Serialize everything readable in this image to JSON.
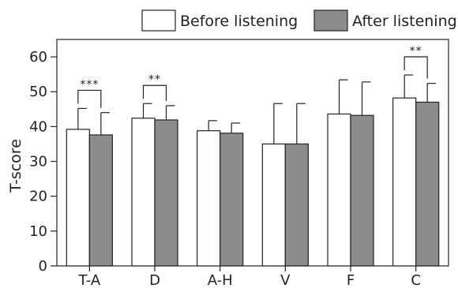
{
  "chart_data": {
    "type": "bar",
    "title": "",
    "xlabel": "",
    "ylabel": "T-score",
    "ylim": [
      0,
      65
    ],
    "yticks": [
      0,
      10,
      20,
      30,
      40,
      50,
      60
    ],
    "grid": false,
    "legend_position": "top-right",
    "categories": [
      "T-A",
      "D",
      "A-H",
      "V",
      "F",
      "C"
    ],
    "series": [
      {
        "name": "Before listening",
        "color": "#ffffff",
        "values": [
          39.2,
          42.4,
          38.8,
          35.0,
          43.6,
          48.2
        ],
        "error_upper": [
          45.2,
          46.6,
          41.7,
          46.6,
          53.4,
          54.8
        ]
      },
      {
        "name": "After listening",
        "color": "#8c8c8c",
        "values": [
          37.6,
          41.9,
          38.1,
          35.0,
          43.2,
          47.0
        ],
        "error_upper": [
          44.0,
          46.0,
          41.0,
          46.6,
          52.8,
          52.4
        ]
      }
    ],
    "significance": [
      {
        "category": "T-A",
        "label": "***"
      },
      {
        "category": "D",
        "label": "**"
      },
      {
        "category": "C",
        "label": "**"
      }
    ]
  }
}
